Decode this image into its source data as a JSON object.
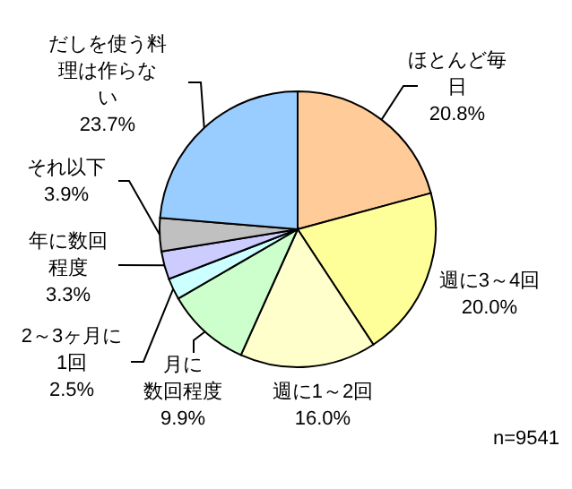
{
  "chart_data": {
    "type": "pie",
    "categories": [
      "ほとんど毎日",
      "週に3～4回",
      "週に1～2回",
      "月に数回程度",
      "2～3ヶ月に1回",
      "年に数回程度",
      "それ以下",
      "だしを使う料理は作らない"
    ],
    "values": [
      20.8,
      20.0,
      16.0,
      9.9,
      2.5,
      3.3,
      3.9,
      23.7
    ],
    "value_labels": [
      "20.8%",
      "20.0%",
      "16.0%",
      "9.9%",
      "2.5%",
      "3.3%",
      "3.9%",
      "23.7%"
    ],
    "colors": [
      "#ffcc99",
      "#ffff99",
      "#ffffcc",
      "#ccffcc",
      "#ccffff",
      "#ccccff",
      "#c0c0c0",
      "#99ccff"
    ],
    "annotations": [
      "n=9541"
    ]
  }
}
